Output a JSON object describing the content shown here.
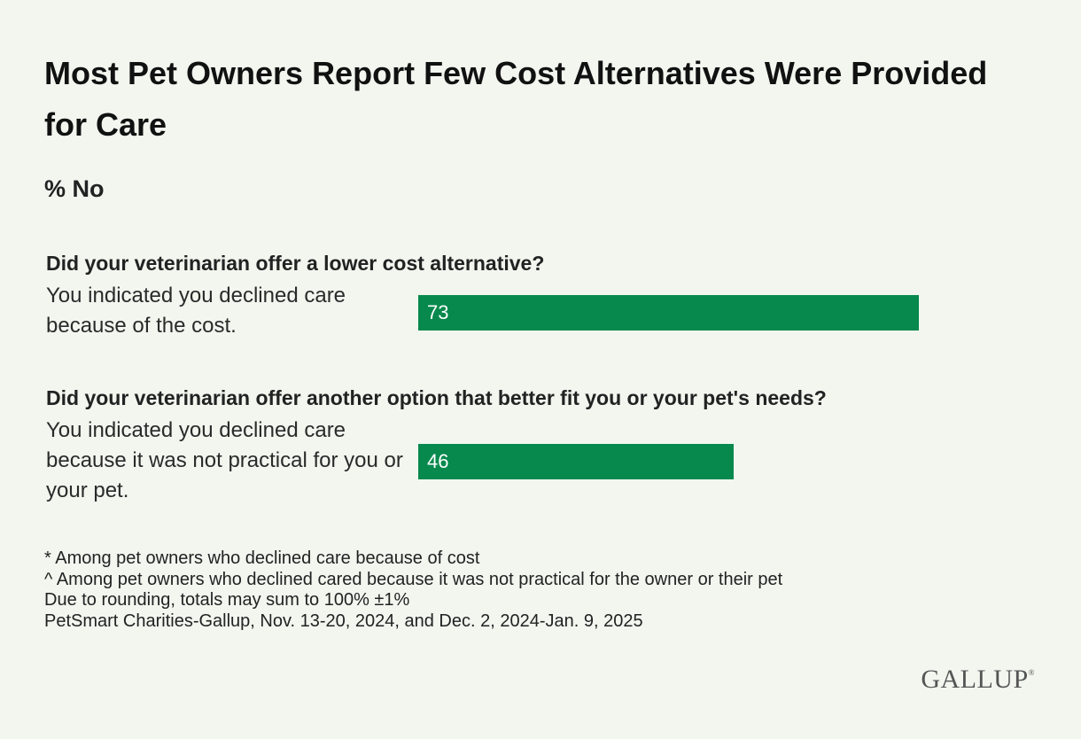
{
  "title": "Most Pet Owners Report Few Cost Alternatives Were Provided for Care",
  "subtitle": "% No",
  "colors": {
    "bar": "#07894d",
    "background": "#f2f6ef"
  },
  "chart_data": {
    "type": "bar",
    "orientation": "horizontal",
    "title": "Most Pet Owners Report Few Cost Alternatives Were Provided for Care",
    "subtitle": "% No",
    "xlim": [
      0,
      100
    ],
    "grid": false,
    "groups": [
      {
        "question": "Did your veterinarian offer a lower cost alternative?",
        "category": "You indicated you declined care because of the cost.",
        "value": 73
      },
      {
        "question": "Did your veterinarian offer another option that better fit you or your pet's needs?",
        "category": "You indicated you declined care because it was not practical for you or your pet.",
        "value": 46
      }
    ]
  },
  "notes": [
    "* Among pet owners who declined care because of cost",
    "^ Among pet owners who declined cared because it was not practical for the owner or their pet",
    "Due to rounding, totals may sum to 100% ±1%",
    "PetSmart Charities-Gallup, Nov. 13-20, 2024, and Dec. 2, 2024-Jan. 9, 2025"
  ],
  "logo": {
    "text": "GALLUP",
    "mark": "®"
  }
}
